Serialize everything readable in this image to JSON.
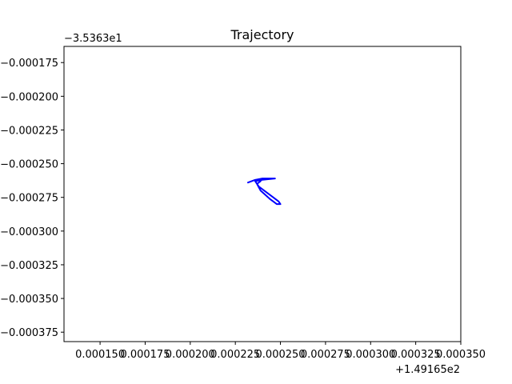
{
  "chart_data": {
    "type": "line",
    "title": "Trajectory",
    "xlabel": "",
    "ylabel": "",
    "x_offset_label": "+1.49165e2",
    "y_offset_label": "−3.5363e1",
    "xlim": [
      0.00013,
      0.00035
    ],
    "ylim": [
      -0.000382,
      -0.000163
    ],
    "grid": false,
    "xticks": [
      0.00015,
      0.000175,
      0.0002,
      0.000225,
      0.00025,
      0.000275,
      0.0003,
      0.000325,
      0.00035
    ],
    "xtick_labels": [
      "0.000150",
      "0.000175",
      "0.000200",
      "0.000225",
      "0.000250",
      "0.000275",
      "0.000300",
      "0.000325",
      "0.000350"
    ],
    "yticks": [
      -0.000175,
      -0.0002,
      -0.000225,
      -0.00025,
      -0.000275,
      -0.0003,
      -0.000325,
      -0.00035,
      -0.000375
    ],
    "ytick_labels": [
      "−0.000175",
      "−0.000200",
      "−0.000225",
      "−0.000250",
      "−0.000275",
      "−0.000300",
      "−0.000325",
      "−0.000350",
      "−0.000375"
    ],
    "series": [
      {
        "color": "#0000ff",
        "x": [
          0.000232,
          0.000236,
          0.00024,
          0.000245,
          0.000247,
          0.00024,
          0.000236,
          0.000238,
          0.000242,
          0.000246,
          0.000249,
          0.00025,
          0.000248,
          0.000244,
          0.000239,
          0.000237,
          0.000239
        ],
        "y": [
          -0.000264,
          -0.000262,
          -0.000261,
          -0.000261,
          -0.000261,
          -0.000262,
          -0.000263,
          -0.000267,
          -0.000271,
          -0.000275,
          -0.000278,
          -0.00028,
          -0.00028,
          -0.000276,
          -0.00027,
          -0.000265,
          -0.000263
        ]
      }
    ]
  }
}
